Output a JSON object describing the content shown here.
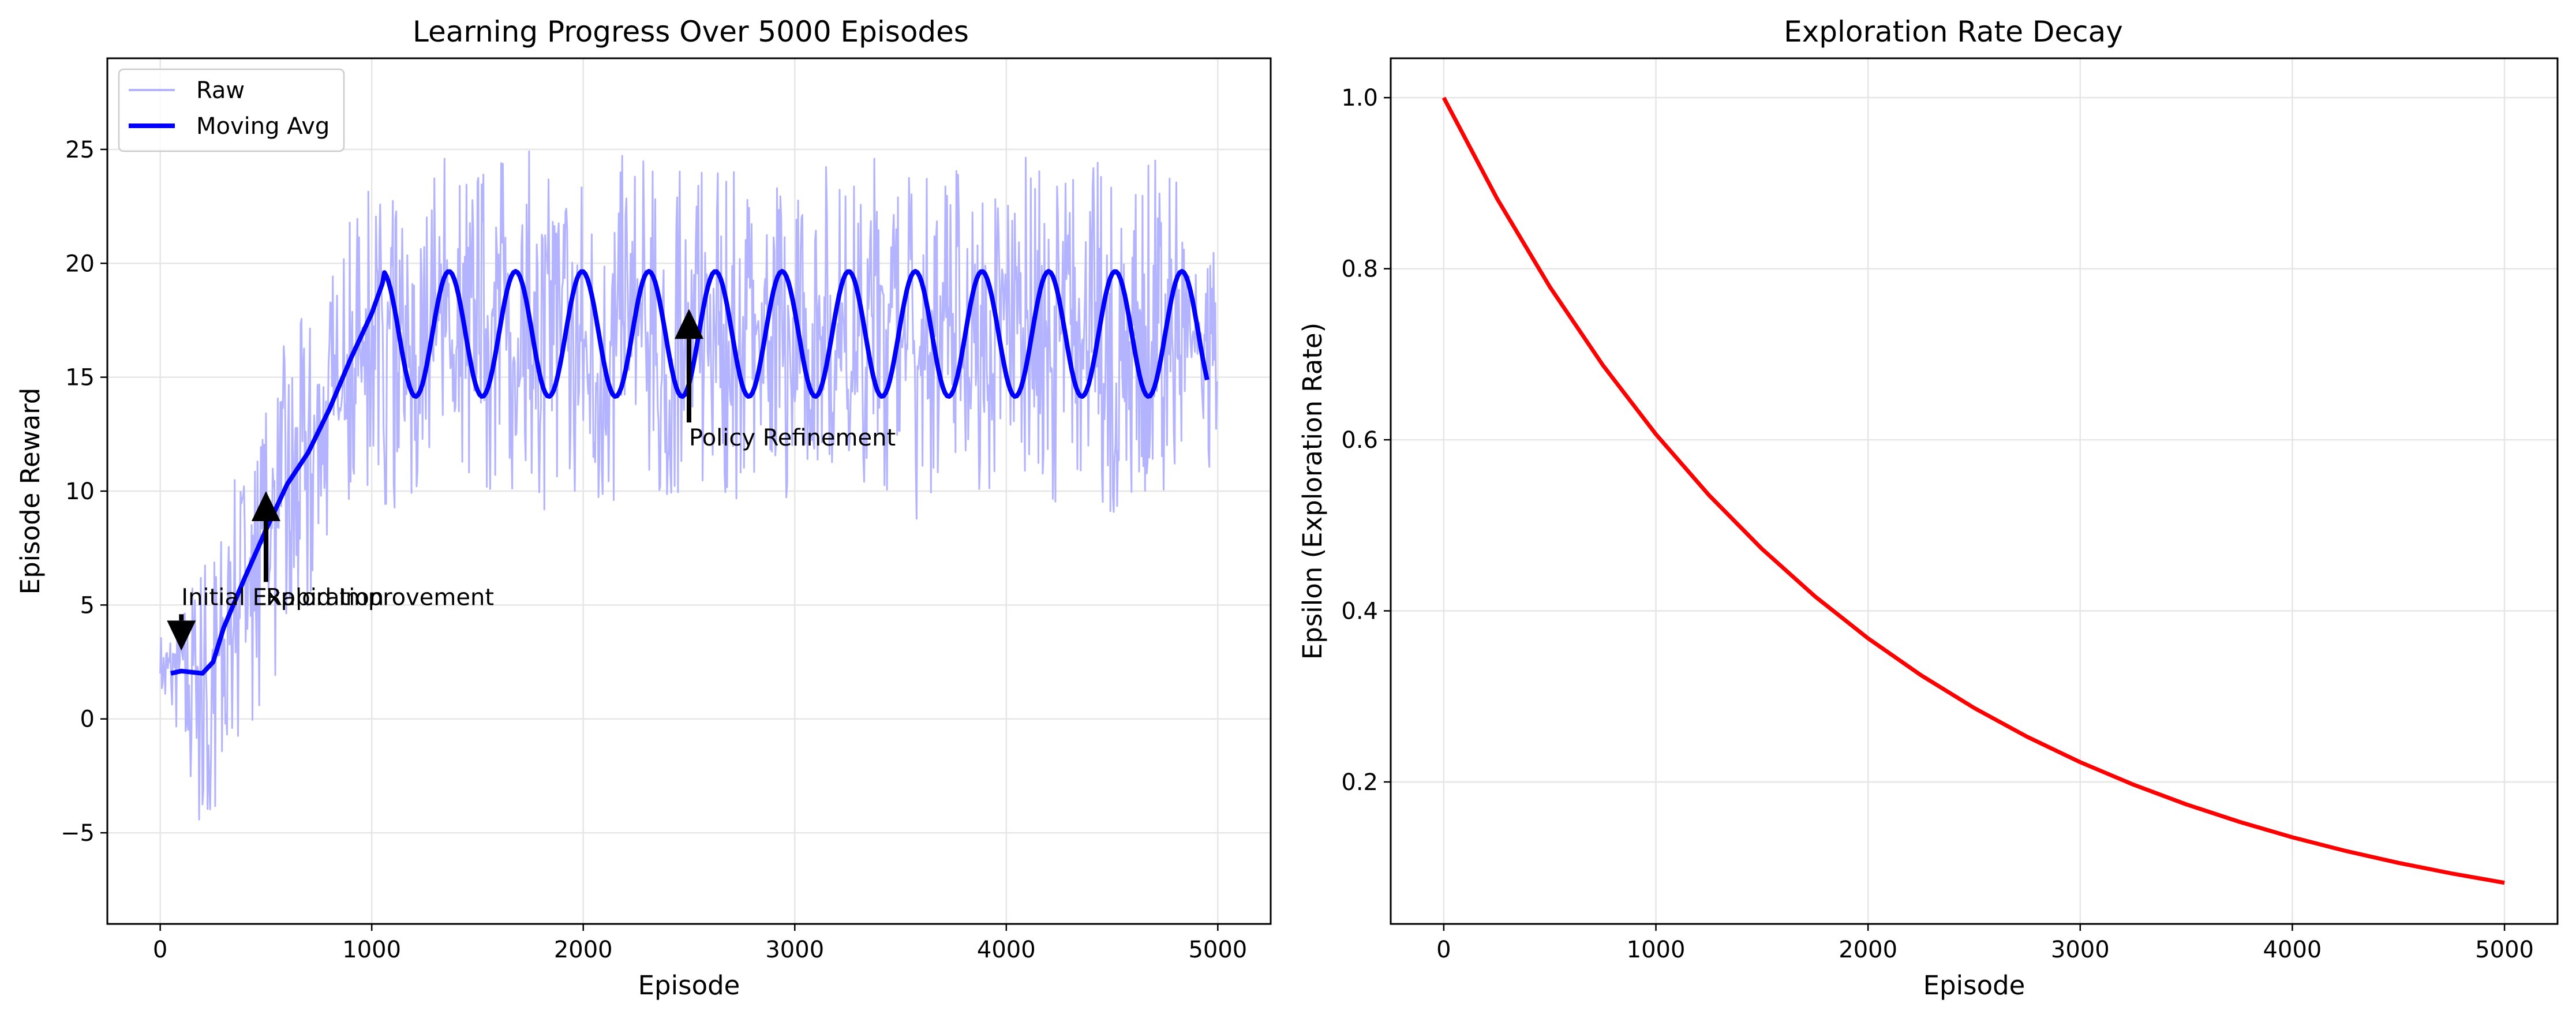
{
  "chart_data": [
    {
      "type": "line",
      "title": "Learning Progress Over 5000 Episodes",
      "xlabel": "Episode",
      "ylabel": "Episode Reward",
      "xlim": [
        -250,
        5250
      ],
      "ylim": [
        -9,
        29
      ],
      "xticks": [
        0,
        1000,
        2000,
        3000,
        4000,
        5000
      ],
      "xtick_labels": [
        "0",
        "1000",
        "2000",
        "3000",
        "4000",
        "5000"
      ],
      "yticks": [
        -5,
        0,
        5,
        10,
        15,
        20,
        25
      ],
      "ytick_labels": [
        "−5",
        "0",
        "5",
        "10",
        "15",
        "20",
        "25"
      ],
      "grid": true,
      "legend": {
        "position": "upper left",
        "entries": [
          "Raw",
          "Moving Avg"
        ]
      },
      "series": [
        {
          "name": "Raw",
          "color": "#b3b3ff",
          "x": [
            0,
            100,
            200,
            300,
            400,
            500,
            600,
            700,
            800,
            900,
            1000,
            1100,
            1200,
            1300,
            1400,
            1500,
            1600,
            1700,
            1800,
            1900,
            2000,
            2100,
            2200,
            2300,
            2400,
            2500,
            2600,
            2700,
            2800,
            2900,
            3000,
            3100,
            3200,
            3300,
            3400,
            3500,
            3600,
            3700,
            3800,
            3900,
            4000,
            4100,
            4200,
            4300,
            4400,
            4500,
            4600,
            4700,
            4800,
            4900,
            5000
          ],
          "values": [
            2,
            2.5,
            2,
            3,
            6,
            8,
            10,
            12,
            13,
            15,
            18,
            16,
            14,
            18,
            15,
            16,
            19,
            15,
            16,
            19,
            16,
            15,
            18,
            16,
            14,
            17,
            16,
            15,
            18,
            16,
            14,
            18,
            16,
            15,
            19,
            17,
            15,
            18,
            16,
            14,
            18,
            17,
            15,
            18,
            16,
            14,
            18,
            17,
            15,
            17,
            16
          ],
          "range_min": [
            0.5,
            -1,
            -7.5,
            -3,
            -1,
            1,
            3,
            5,
            7,
            9,
            10,
            9,
            9,
            10,
            10,
            9,
            10,
            10,
            9,
            10,
            10,
            9,
            10,
            10,
            8.5,
            10,
            10,
            9,
            10,
            10,
            9,
            10,
            10,
            9,
            10,
            10,
            7.6,
            10,
            10,
            9,
            10,
            10,
            9,
            10,
            10,
            9,
            10,
            10,
            10,
            11,
            11
          ],
          "range_max": [
            4,
            5,
            8,
            9,
            12,
            14,
            17,
            18,
            20,
            22,
            23.5,
            23,
            22,
            25,
            27,
            25,
            25,
            26,
            24,
            25,
            25,
            24,
            25,
            25,
            24,
            25,
            24,
            24,
            25,
            24,
            24,
            25,
            25,
            24,
            26,
            25,
            24,
            25,
            25,
            24,
            25,
            25,
            24,
            25,
            25,
            24,
            25,
            25,
            24,
            21,
            21
          ]
        },
        {
          "name": "Moving Avg",
          "color": "#0000ff",
          "moving_average": {
            "x_start": 50,
            "x_end": 4950,
            "ramp_points": [
              [
                50,
                2.0
              ],
              [
                100,
                2.1
              ],
              [
                200,
                2.0
              ],
              [
                250,
                2.5
              ],
              [
                300,
                4.0
              ],
              [
                400,
                6.2
              ],
              [
                500,
                8.3
              ],
              [
                600,
                10.3
              ],
              [
                700,
                11.7
              ],
              [
                800,
                13.6
              ],
              [
                900,
                15.8
              ],
              [
                1000,
                17.8
              ],
              [
                1050,
                19.1
              ]
            ],
            "oscillation": {
              "center": 16.9,
              "amplitude": 2.75,
              "period": 315,
              "peak_x": 1050
            }
          }
        }
      ],
      "annotations": [
        {
          "text": "Initial Exploration",
          "arrow_x": 100,
          "arrow_y": 3.0,
          "text_x": 100,
          "text_y": 5.0
        },
        {
          "text": "Rapid Improvement",
          "arrow_x": 500,
          "arrow_y": 10.0,
          "text_x": 500,
          "text_y": 5.0
        },
        {
          "text": "Policy Refinement",
          "arrow_x": 2500,
          "arrow_y": 18.0,
          "text_x": 2500,
          "text_y": 12.0
        }
      ]
    },
    {
      "type": "line",
      "title": "Exploration Rate Decay",
      "xlabel": "Episode",
      "ylabel": "Epsilon (Exploration Rate)",
      "xlim": [
        -250,
        5250
      ],
      "ylim": [
        0.034,
        1.046
      ],
      "xticks": [
        0,
        1000,
        2000,
        3000,
        4000,
        5000
      ],
      "xtick_labels": [
        "0",
        "1000",
        "2000",
        "3000",
        "4000",
        "5000"
      ],
      "yticks": [
        0.2,
        0.4,
        0.6,
        0.8,
        1.0
      ],
      "ytick_labels": [
        "0.2",
        "0.4",
        "0.6",
        "0.8",
        "1.0"
      ],
      "grid": true,
      "series": [
        {
          "color": "#ff0000",
          "x": [
            0,
            250,
            500,
            750,
            1000,
            1250,
            1500,
            1750,
            2000,
            2250,
            2500,
            2750,
            3000,
            3250,
            3500,
            3750,
            4000,
            4250,
            4500,
            4750,
            5000
          ],
          "values": [
            1.0,
            0.8825,
            0.7788,
            0.6873,
            0.6065,
            0.5353,
            0.4724,
            0.4169,
            0.3679,
            0.3247,
            0.2865,
            0.2528,
            0.2231,
            0.1969,
            0.1738,
            0.1534,
            0.1353,
            0.1194,
            0.1054,
            0.093,
            0.0821
          ]
        }
      ]
    }
  ]
}
